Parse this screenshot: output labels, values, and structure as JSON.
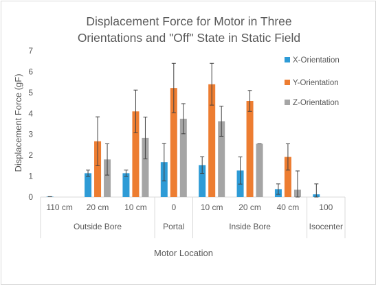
{
  "chart_data": {
    "type": "bar",
    "title_lines": [
      "Displacement Force for Motor in Three",
      "Orientations and \"Off\" State in Static Field"
    ],
    "ylabel": "Displacement Force (gF)",
    "xlabel": "Motor Location",
    "ylim": [
      0,
      7
    ],
    "yticks": [
      0,
      1,
      2,
      3,
      4,
      5,
      6,
      7
    ],
    "grid": false,
    "legend_position": "right",
    "categories": [
      "110 cm",
      "20 cm",
      "10 cm",
      "0",
      "10 cm",
      "20 cm",
      "40 cm",
      "100"
    ],
    "groups": [
      {
        "label": "Outside Bore",
        "span": 3
      },
      {
        "label": "Portal",
        "span": 1
      },
      {
        "label": "Inside Bore",
        "span": 3
      },
      {
        "label": "Isocenter",
        "span": 1
      }
    ],
    "series": [
      {
        "name": "X-Orientation",
        "color": "#2e9bd6",
        "values": [
          0.02,
          1.14,
          1.14,
          1.67,
          1.53,
          1.27,
          0.38,
          0.13
        ],
        "errors": [
          0.0,
          0.15,
          0.15,
          0.9,
          0.4,
          0.65,
          0.25,
          0.5
        ]
      },
      {
        "name": "Y-Orientation",
        "color": "#ed7d31",
        "values": [
          null,
          2.67,
          4.1,
          5.22,
          5.4,
          4.6,
          1.92,
          null
        ],
        "errors": [
          null,
          1.17,
          1.02,
          1.18,
          1.0,
          0.5,
          0.63,
          null
        ]
      },
      {
        "name": "Z-Orientation",
        "color": "#a5a5a5",
        "values": [
          null,
          1.8,
          2.83,
          3.75,
          3.63,
          2.55,
          0.35,
          null
        ],
        "errors": [
          null,
          0.75,
          1.0,
          0.72,
          0.72,
          0.0,
          0.9,
          null
        ]
      }
    ]
  }
}
